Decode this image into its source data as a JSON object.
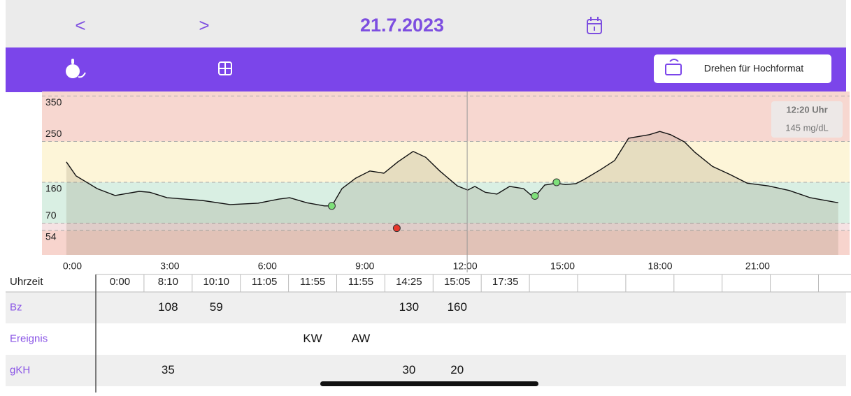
{
  "header": {
    "prev": "<",
    "next": ">",
    "date": "21.7.2023",
    "button": "Drehen für Hochformat"
  },
  "chart_data": {
    "type": "line",
    "x": [
      0,
      0.3,
      0.95,
      1.5,
      2.24,
      2.57,
      3.1,
      4.18,
      5.04,
      5.9,
      6.54,
      6.87,
      7.4,
      7.94,
      8.17,
      8.48,
      8.9,
      9.34,
      9.77,
      10.2,
      10.67,
      11.06,
      11.49,
      12.03,
      12.35,
      12.57,
      12.89,
      13.25,
      13.64,
      14.07,
      14.39,
      14.72,
      15.08,
      15.36,
      15.68,
      15.9,
      16.44,
      16.87,
      17.3,
      17.94,
      18.26,
      18.59,
      19.02,
      19.34,
      19.88,
      20.42,
      20.95,
      21.6,
      22.24,
      22.89,
      23.75
    ],
    "values": [
      205,
      174,
      146,
      131,
      140,
      138,
      126,
      120,
      111,
      114,
      123,
      126,
      115,
      108,
      108,
      146,
      169,
      185,
      180,
      205,
      228,
      215,
      185,
      152,
      143,
      151,
      138,
      134,
      151,
      146,
      126,
      154,
      158,
      155,
      157,
      165,
      188,
      208,
      257,
      265,
      272,
      265,
      249,
      226,
      195,
      177,
      158,
      152,
      142,
      126,
      115
    ],
    "color": "#111111",
    "area_color": "rgba(110,100,70,0.16)",
    "xlim": [
      -0.75,
      24.1
    ],
    "ylim": [
      0,
      360
    ],
    "xticks": [
      {
        "value": 0,
        "label": "0:00"
      },
      {
        "value": 3,
        "label": "3:00"
      },
      {
        "value": 6,
        "label": "6:00"
      },
      {
        "value": 9,
        "label": "9:00"
      },
      {
        "value": 12,
        "label": "12:00"
      },
      {
        "value": 15,
        "label": "15:00"
      },
      {
        "value": 18,
        "label": "18:00"
      },
      {
        "value": 21,
        "label": "21:00"
      }
    ],
    "yticks": [
      54,
      70,
      160,
      250,
      350
    ],
    "bands": [
      {
        "from": 0,
        "to": 54,
        "color": "#f7d4cd"
      },
      {
        "from": 54,
        "to": 70,
        "color": "#f5e2e3"
      },
      {
        "from": 70,
        "to": 160,
        "color": "#d9efe3"
      },
      {
        "from": 160,
        "to": 250,
        "color": "#fdf5d8"
      },
      {
        "from": 250,
        "to": 360,
        "color": "#f7d7d0"
      }
    ],
    "markers": {
      "x": [
        8.1667,
        10.1667,
        14.4167,
        15.0833
      ],
      "values": [
        108,
        59,
        130,
        160
      ],
      "colors": [
        "#7ee07a",
        "#e8382c",
        "#7ee07a",
        "#7ee07a"
      ]
    },
    "tooltip": {
      "x": 12.3333,
      "title": "12:20 Uhr",
      "value": 145,
      "value_label": "145 mg/dL"
    }
  },
  "table": {
    "header": [
      "Uhrzeit",
      "0:00",
      "8:10",
      "10:10",
      "11:05",
      "11:55",
      "11:55",
      "14:25",
      "15:05",
      "17:35"
    ],
    "rows": [
      [
        "Bz",
        null,
        108,
        59,
        null,
        null,
        null,
        130,
        160,
        null
      ],
      [
        "Ereignis",
        null,
        null,
        null,
        null,
        "KW",
        "AW",
        null,
        null,
        null
      ],
      [
        "gKH",
        null,
        35,
        null,
        null,
        null,
        null,
        30,
        20,
        null
      ]
    ]
  }
}
